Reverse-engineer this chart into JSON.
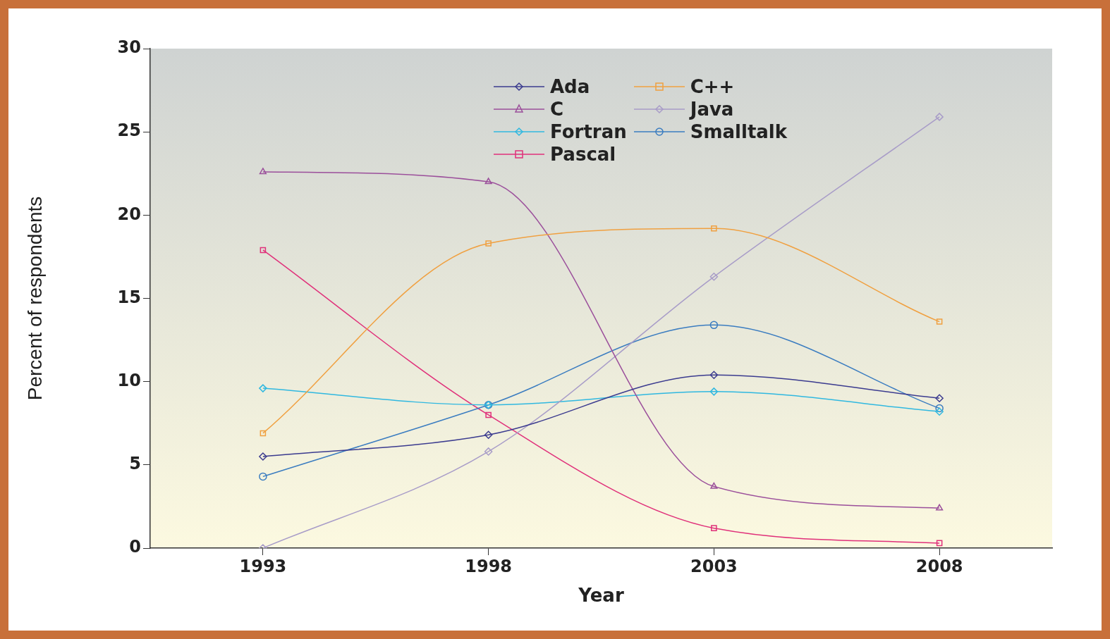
{
  "chart_data": {
    "type": "line",
    "xlabel": "Year",
    "ylabel": "Percent of respondents",
    "x": [
      1993,
      1998,
      2003,
      2008
    ],
    "xlim": [
      1990.5,
      2010.5
    ],
    "xticks": [
      1993,
      1998,
      2003,
      2008
    ],
    "ylim": [
      0,
      30
    ],
    "yticks": [
      0,
      5,
      10,
      15,
      20,
      25,
      30
    ],
    "grid": false,
    "legend": "top",
    "series": [
      {
        "name": "Ada",
        "color": "#3b3b8f",
        "marker": "diamond",
        "values": [
          5.5,
          6.8,
          10.4,
          9.0
        ]
      },
      {
        "name": "C++",
        "color": "#f0a040",
        "marker": "square",
        "values": [
          6.9,
          18.3,
          19.2,
          13.6
        ]
      },
      {
        "name": "C",
        "color": "#9b4f9b",
        "marker": "triangle",
        "values": [
          22.6,
          22.0,
          3.7,
          2.4
        ]
      },
      {
        "name": "Java",
        "color": "#a89cc8",
        "marker": "diamond",
        "values": [
          0,
          5.8,
          16.3,
          25.9
        ]
      },
      {
        "name": "Fortran",
        "color": "#30b8e0",
        "marker": "diamond",
        "values": [
          9.6,
          8.6,
          9.4,
          8.2
        ]
      },
      {
        "name": "Smalltalk",
        "color": "#3a7cc0",
        "marker": "circle",
        "values": [
          4.3,
          8.6,
          13.4,
          8.4
        ]
      },
      {
        "name": "Pascal",
        "color": "#e0307a",
        "marker": "square",
        "values": [
          17.9,
          8.0,
          1.2,
          0.3
        ]
      }
    ]
  }
}
